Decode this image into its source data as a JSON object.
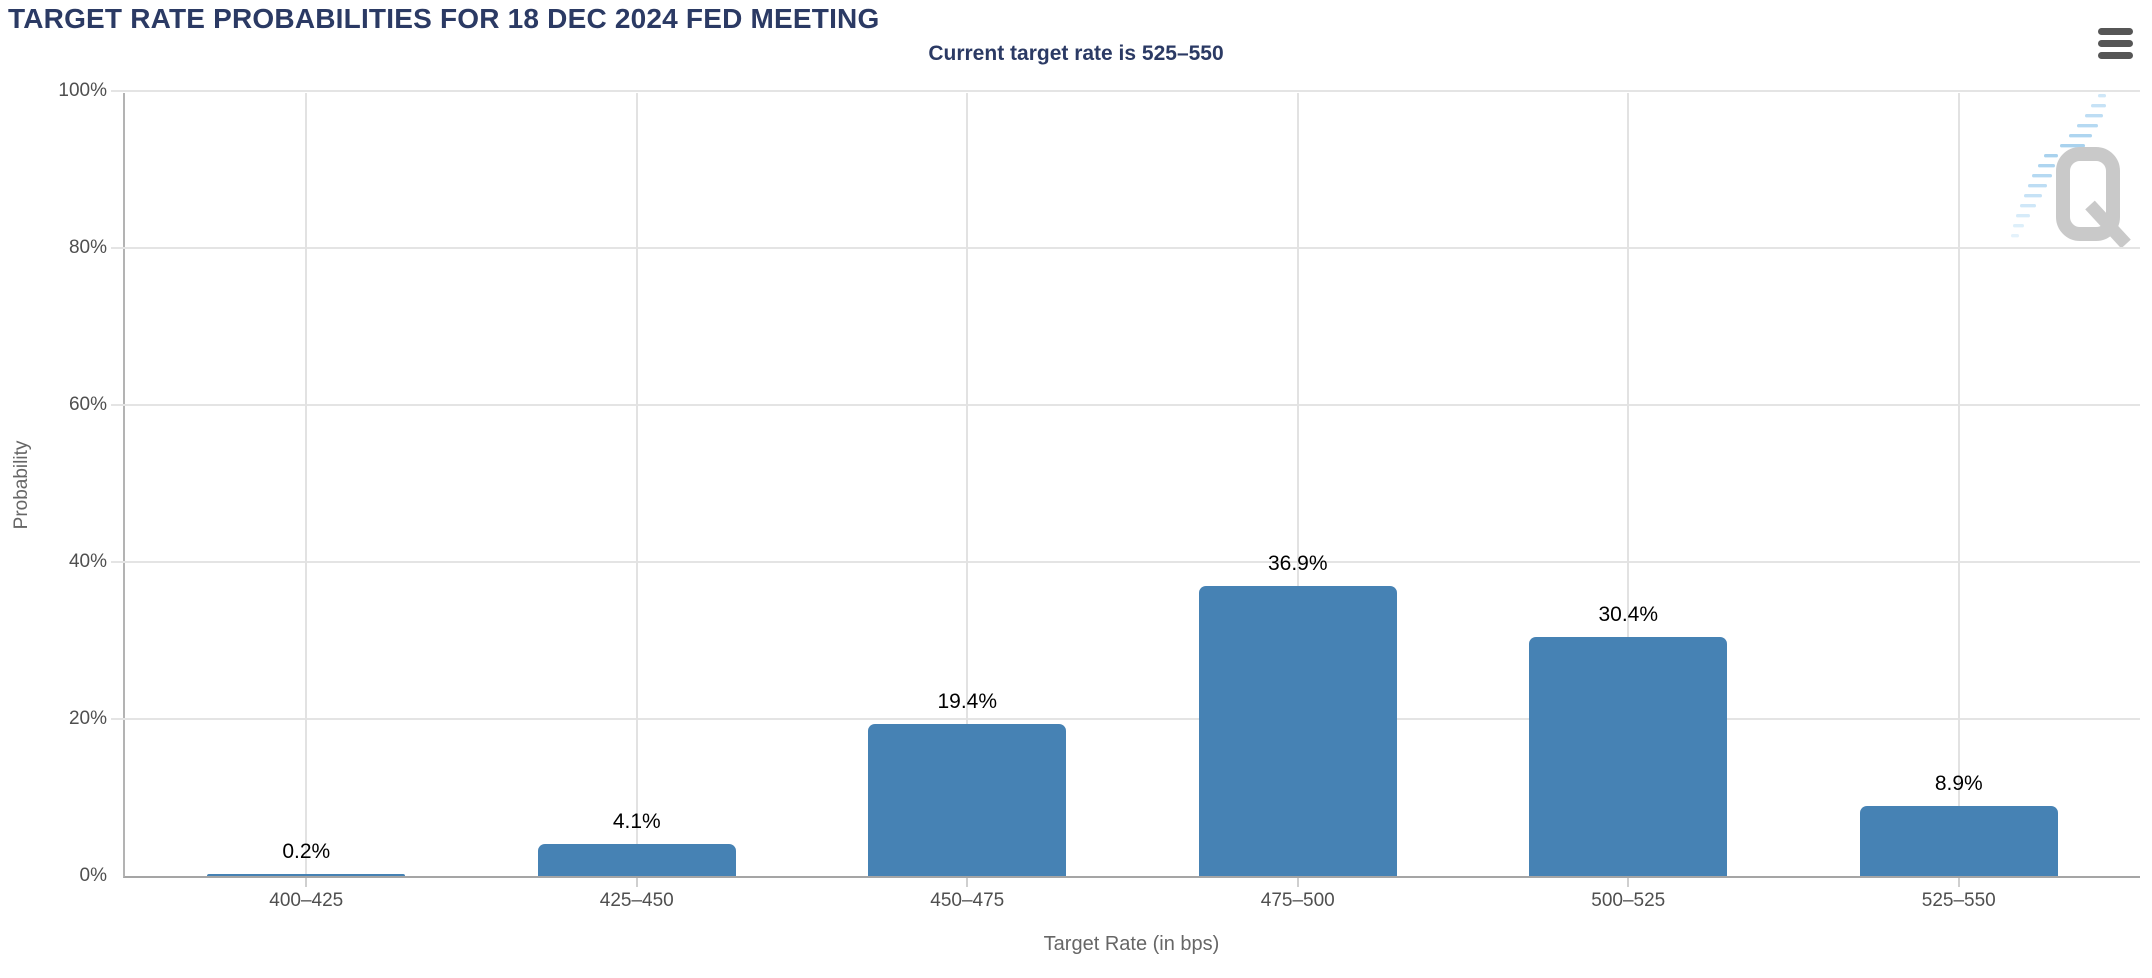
{
  "header": {
    "title": "TARGET RATE PROBABILITIES FOR 18 DEC 2024 FED MEETING",
    "subtitle": "Current target rate is 525–550"
  },
  "toolbar": {
    "context_menu_icon": "hamburger-icon"
  },
  "watermark": {
    "letter": "Q",
    "q_color": "#c9c9c9",
    "dash_color": "#b9dcf3"
  },
  "chart_data": {
    "type": "bar",
    "title": "TARGET RATE PROBABILITIES FOR 18 DEC 2024 FED MEETING",
    "subtitle": "Current target rate is 525–550",
    "xlabel": "Target Rate (in bps)",
    "ylabel": "Probability",
    "categories": [
      "400–425",
      "425–450",
      "450–475",
      "475–500",
      "500–525",
      "525–550"
    ],
    "values": [
      0.2,
      4.1,
      19.4,
      36.9,
      30.4,
      8.9
    ],
    "value_labels": [
      "0.2%",
      "4.1%",
      "19.4%",
      "36.9%",
      "30.4%",
      "8.9%"
    ],
    "ylim": [
      0,
      100
    ],
    "ytick_values": [
      0,
      20,
      40,
      60,
      80,
      100
    ],
    "ytick_labels": [
      "0%",
      "20%",
      "40%",
      "60%",
      "80%",
      "100%"
    ],
    "grid": true,
    "legend": "none",
    "bar_color": "#4682b4",
    "title_color": "#2b3a64",
    "data_label_color": "#000000",
    "axis_label_color": "#4f4f4f",
    "axis_title_color": "#666666"
  }
}
